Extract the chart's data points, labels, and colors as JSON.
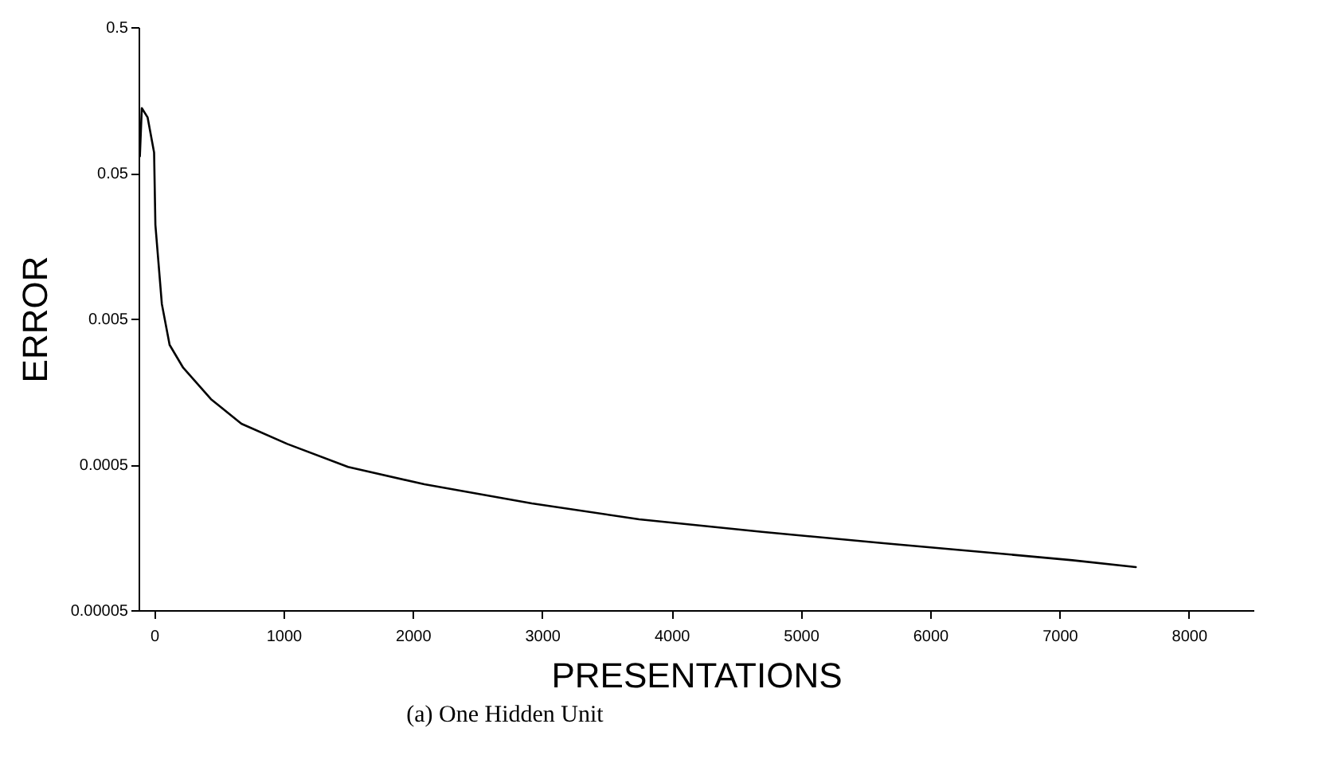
{
  "chart_data": {
    "type": "line",
    "title": "(a) One Hidden Unit",
    "xlabel": "PRESENTATIONS",
    "ylabel": "ERROR",
    "x": [
      -110,
      -95,
      -50,
      0,
      10,
      60,
      120,
      225,
      440,
      675,
      1030,
      1500,
      2090,
      2920,
      3750,
      4700,
      5640,
      6590,
      7100,
      7590
    ],
    "series": [
      {
        "color": "#000000",
        "values": [
          0.065,
          0.139,
          0.12,
          0.069,
          0.022,
          0.0063,
          0.0033,
          0.0023,
          0.0014,
          0.00095,
          0.00069,
          0.00048,
          0.000365,
          0.00027,
          0.00021,
          0.000172,
          0.000144,
          0.000121,
          0.00011,
          9.86e-05
        ]
      }
    ],
    "log": "y",
    "xlim": [
      -120,
      8500
    ],
    "ylim": [
      5e-05,
      0.5
    ],
    "xticks": [
      0,
      1000,
      2000,
      3000,
      4000,
      5000,
      6000,
      7000,
      8000
    ],
    "yticks": [
      {
        "value": 5e-05,
        "label": "0.00005"
      },
      0.0005,
      0.005,
      0.05,
      0.5
    ],
    "grid": false,
    "legend": false,
    "marker": "none",
    "line_style": "solid"
  }
}
